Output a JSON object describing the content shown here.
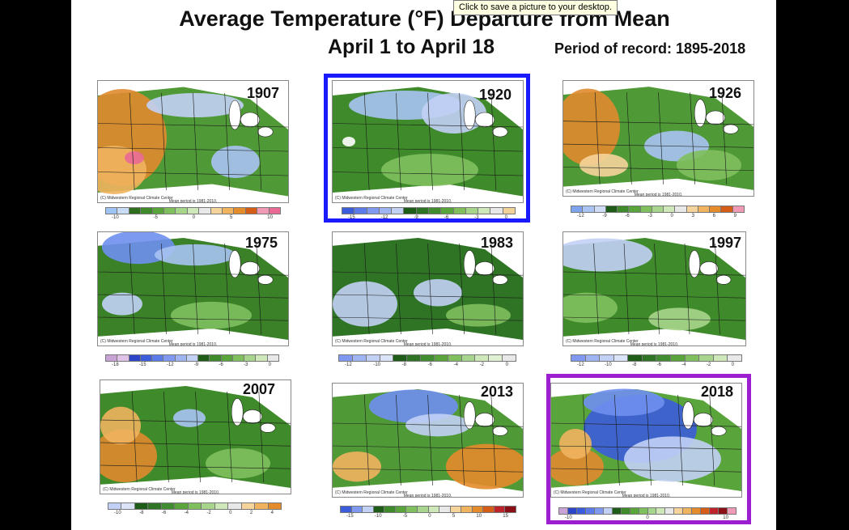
{
  "tooltip": "Click to save a picture to your desktop.",
  "title": "Average Temperature (°F) Departure from Mean",
  "subtitle": "April 1 to April 18",
  "record": "Period of record: 1895-2018",
  "map_credit": "(C) Midwestern Regional Climate Center",
  "map_mean": "Mean period is 1981-2010.",
  "panels": [
    {
      "year": "1907",
      "ticks": [
        "-10",
        "-5",
        "0",
        "5",
        "10"
      ]
    },
    {
      "year": "1920",
      "ticks": [
        "-15",
        "-12",
        "-9",
        "-6",
        "-3",
        "0"
      ]
    },
    {
      "year": "1926",
      "ticks": [
        "-12",
        "-9",
        "-6",
        "-3",
        "0",
        "3",
        "6",
        "9"
      ]
    },
    {
      "year": "1975",
      "ticks": [
        "-18",
        "-15",
        "-12",
        "-9",
        "-6",
        "-3",
        "0"
      ]
    },
    {
      "year": "1983",
      "ticks": [
        "-12",
        "-10",
        "-8",
        "-6",
        "-4",
        "-2",
        "0"
      ]
    },
    {
      "year": "1997",
      "ticks": [
        "-12",
        "-10",
        "-8",
        "-6",
        "-4",
        "-2",
        "0"
      ]
    },
    {
      "year": "2007",
      "ticks": [
        "-10",
        "-8",
        "-6",
        "-4",
        "-2",
        "0",
        "2",
        "4"
      ]
    },
    {
      "year": "2013",
      "ticks": [
        "-15",
        "-10",
        "-5",
        "0",
        "5",
        "10",
        "15"
      ]
    },
    {
      "year": "2018",
      "ticks": [
        "-10",
        "0",
        "10"
      ]
    }
  ],
  "colors": {
    "highlight_1920": "#1a1aff",
    "highlight_2018": "#9b1fd1"
  }
}
